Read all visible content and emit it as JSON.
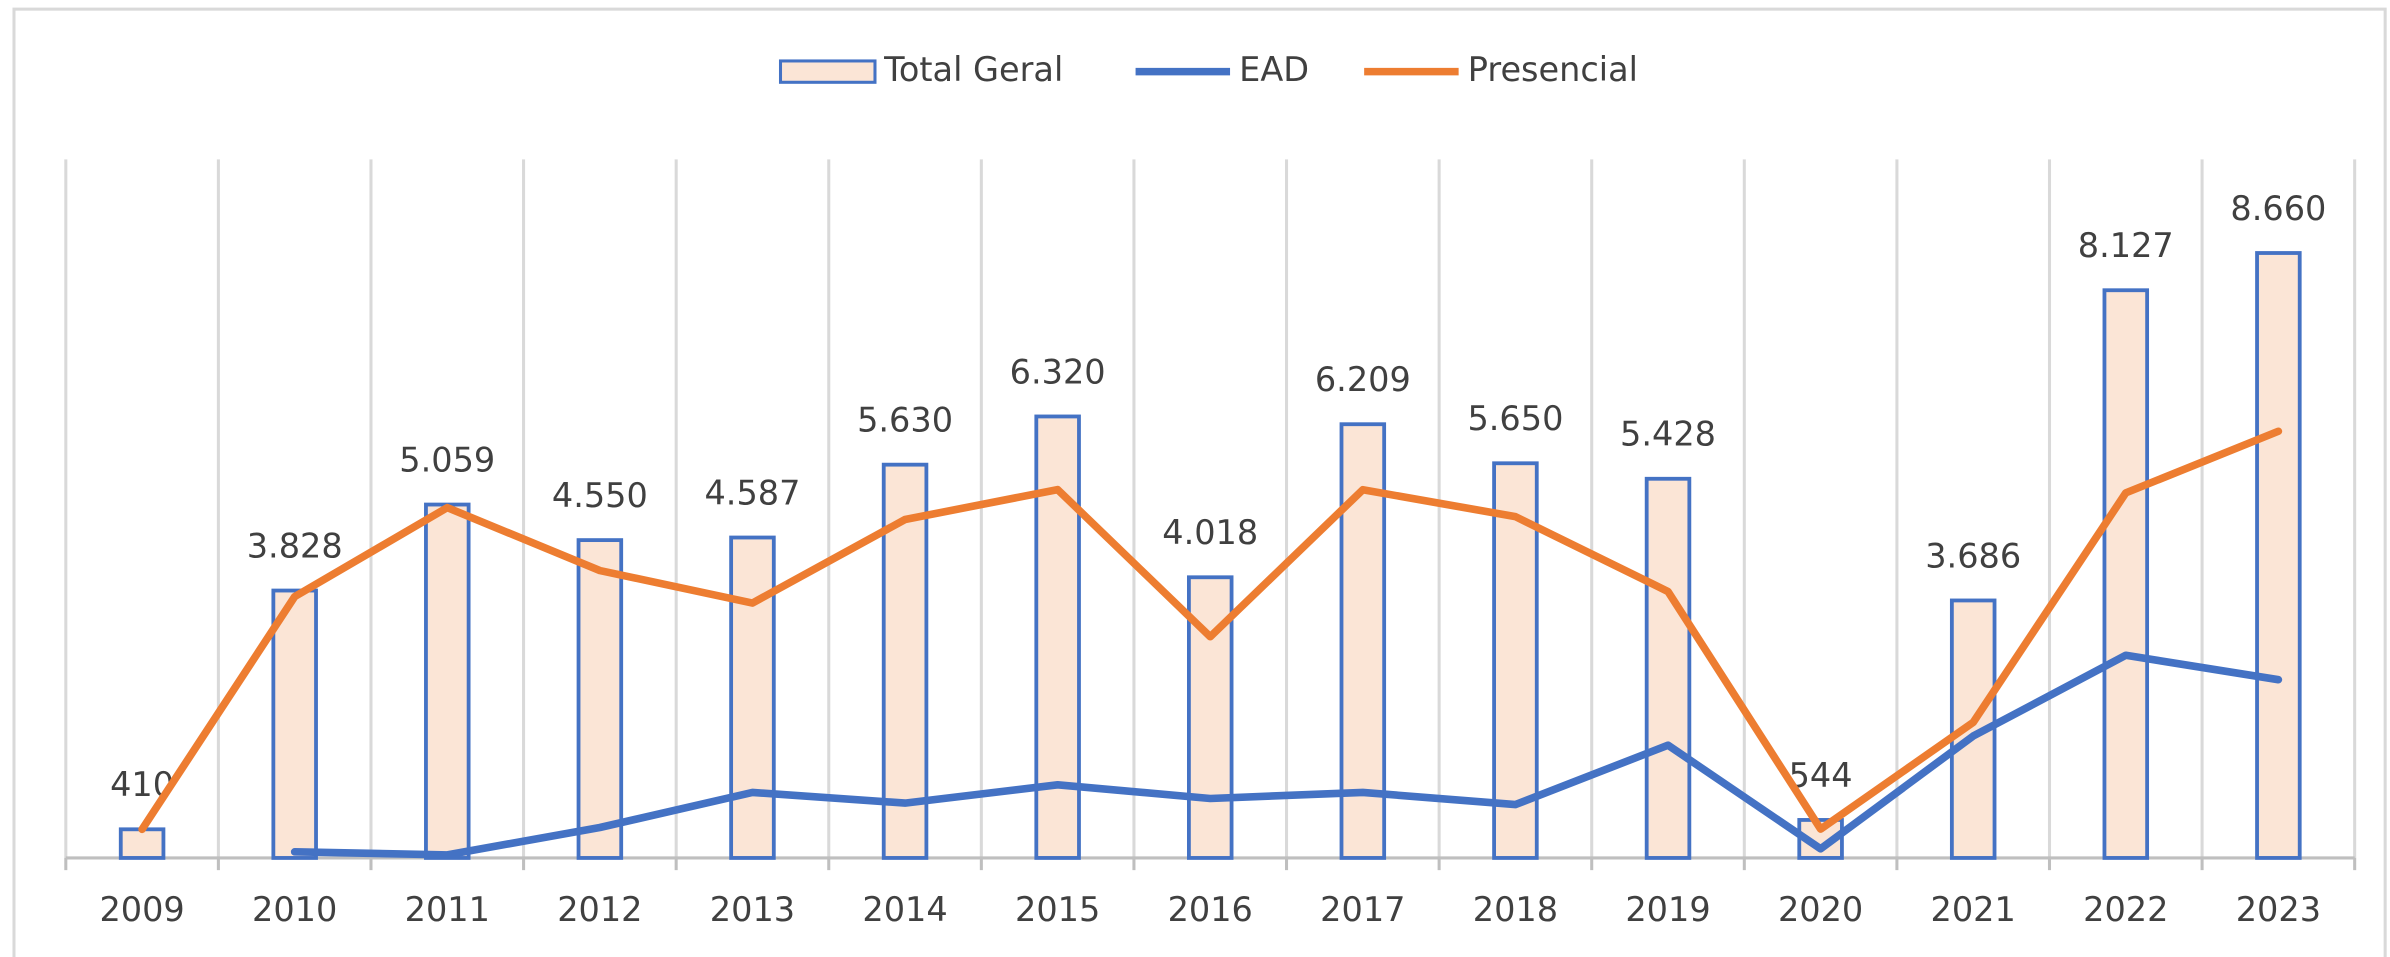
{
  "chart_data": {
    "type": "bar_line",
    "categories": [
      "2009",
      "2010",
      "2011",
      "2012",
      "2013",
      "2014",
      "2015",
      "2016",
      "2017",
      "2018",
      "2019",
      "2020",
      "2021",
      "2022",
      "2023"
    ],
    "series": [
      {
        "name": "Total Geral",
        "type": "bar",
        "color": "#4472c4",
        "fill": "#fbe5d6",
        "values": [
          410,
          3828,
          5059,
          4550,
          4587,
          5630,
          6320,
          4018,
          6209,
          5650,
          5428,
          544,
          3686,
          8127,
          8660
        ],
        "value_labels": [
          "410",
          "3.828",
          "5.059",
          "4.550",
          "4.587",
          "5.630",
          "6.320",
          "4.018",
          "6.209",
          "5.650",
          "5.428",
          "544",
          "3.686",
          "8.127",
          "8.660"
        ]
      },
      {
        "name": "EAD",
        "type": "line",
        "color": "#4472c4",
        "values": [
          null,
          87,
          44,
          436,
          938,
          785,
          1047,
          851,
          938,
          764,
          1614,
          131,
          1745,
          2901,
          2552
        ]
      },
      {
        "name": "Presencial",
        "type": "line",
        "color": "#ed7d31",
        "values": [
          410,
          3741,
          5015,
          4114,
          3649,
          4845,
          5273,
          3167,
          5271,
          4886,
          3814,
          413,
          1941,
          5226,
          6108
        ]
      }
    ],
    "ylim": [
      0,
      10000
    ],
    "grid": "vertical",
    "legend": "top"
  }
}
